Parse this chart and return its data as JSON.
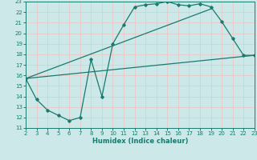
{
  "bg_color": "#cce8e8",
  "grid_color": "#e8c8c8",
  "line_color": "#1a7a6e",
  "marker": "D",
  "markersize": 1.8,
  "linewidth": 0.9,
  "xlabel": "Humidex (Indice chaleur)",
  "xlim": [
    2,
    23
  ],
  "ylim": [
    11,
    23
  ],
  "xticks": [
    2,
    3,
    4,
    5,
    6,
    7,
    8,
    9,
    10,
    11,
    12,
    13,
    14,
    15,
    16,
    17,
    18,
    19,
    20,
    21,
    22,
    23
  ],
  "yticks": [
    11,
    12,
    13,
    14,
    15,
    16,
    17,
    18,
    19,
    20,
    21,
    22,
    23
  ],
  "line1_x": [
    2,
    3,
    4,
    5,
    6,
    7,
    8,
    9,
    10,
    11,
    12,
    13,
    14,
    15,
    16,
    17,
    18,
    19,
    20,
    21,
    22,
    23
  ],
  "line1_y": [
    15.7,
    13.7,
    12.7,
    12.2,
    11.7,
    12.0,
    17.5,
    14.0,
    19.0,
    20.8,
    22.5,
    22.7,
    22.8,
    23.0,
    22.7,
    22.6,
    22.8,
    22.5,
    21.1,
    19.5,
    17.9,
    17.9
  ],
  "line2_x": [
    2,
    23
  ],
  "line2_y": [
    15.7,
    17.9
  ],
  "line3_x": [
    2,
    19
  ],
  "line3_y": [
    15.7,
    22.3
  ]
}
